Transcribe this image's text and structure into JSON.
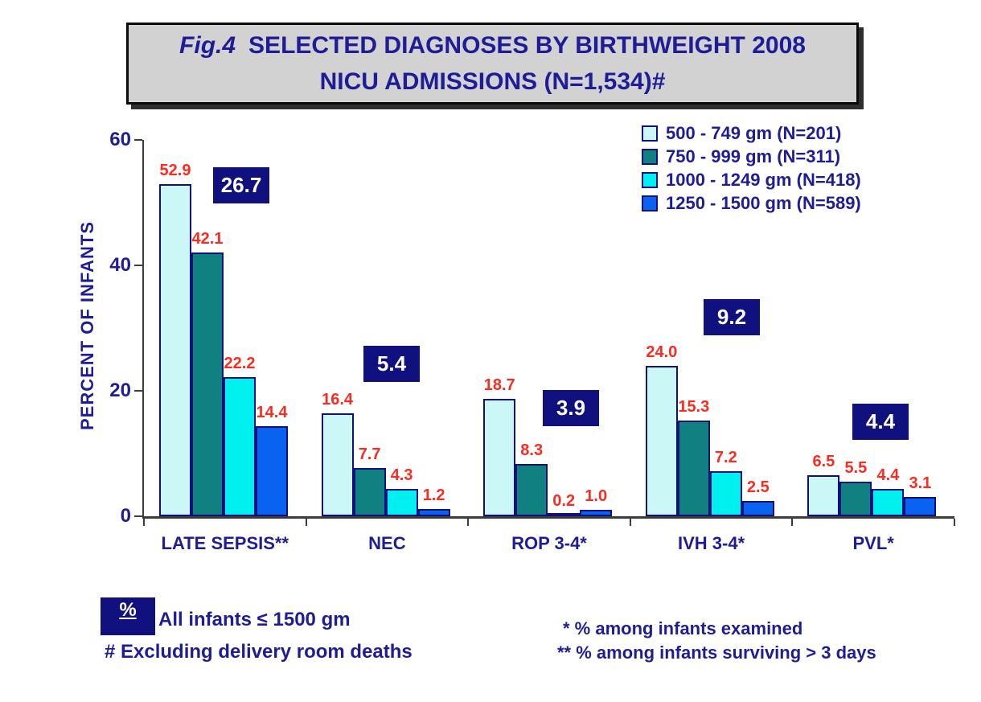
{
  "title": {
    "fig_label": "Fig.4",
    "line1_rest": "SELECTED DIAGNOSES BY BIRTHWEIGHT 2008",
    "line2": "NICU ADMISSIONS (N=1,534)#"
  },
  "chart_data": {
    "type": "bar",
    "title": "Fig.4 SELECTED DIAGNOSES BY BIRTHWEIGHT 2008 NICU ADMISSIONS (N=1,534)#",
    "ylabel": "PERCENT OF INFANTS",
    "xlabel": "",
    "ylim": [
      0,
      60
    ],
    "yticks": [
      0,
      20,
      40,
      60
    ],
    "grid": false,
    "legend_position": "top-right",
    "categories": [
      "LATE SEPSIS**",
      "NEC",
      "ROP 3-4*",
      "IVH 3-4*",
      "PVL*"
    ],
    "series": [
      {
        "name": "500  -  749 gm  (N=201)",
        "color": "#ccf7f7",
        "values": [
          52.9,
          16.4,
          18.7,
          24.0,
          6.5
        ]
      },
      {
        "name": "750  -  999 gm  (N=311)",
        "color": "#108080",
        "values": [
          42.1,
          7.7,
          8.3,
          15.3,
          5.5
        ]
      },
      {
        "name": "1000 - 1249 gm (N=418)",
        "color": "#00efef",
        "values": [
          22.2,
          4.3,
          0.2,
          7.2,
          4.4
        ]
      },
      {
        "name": "1250 - 1500 gm (N=589)",
        "color": "#0a62f0",
        "values": [
          14.4,
          1.2,
          1.0,
          2.5,
          3.1
        ]
      }
    ],
    "overall_values": [
      26.7,
      5.4,
      3.9,
      9.2,
      4.4
    ],
    "value_label_color": "#fb2b20",
    "overall_box_color": "#10107e"
  },
  "footnotes": {
    "pct_symbol": "%",
    "all_infants": "All infants ≤ 1500 gm",
    "hash_note": "#  Excluding delivery room deaths",
    "star_note": "*  %  among infants examined",
    "double_star_note": "** %  among infants surviving > 3 days"
  }
}
